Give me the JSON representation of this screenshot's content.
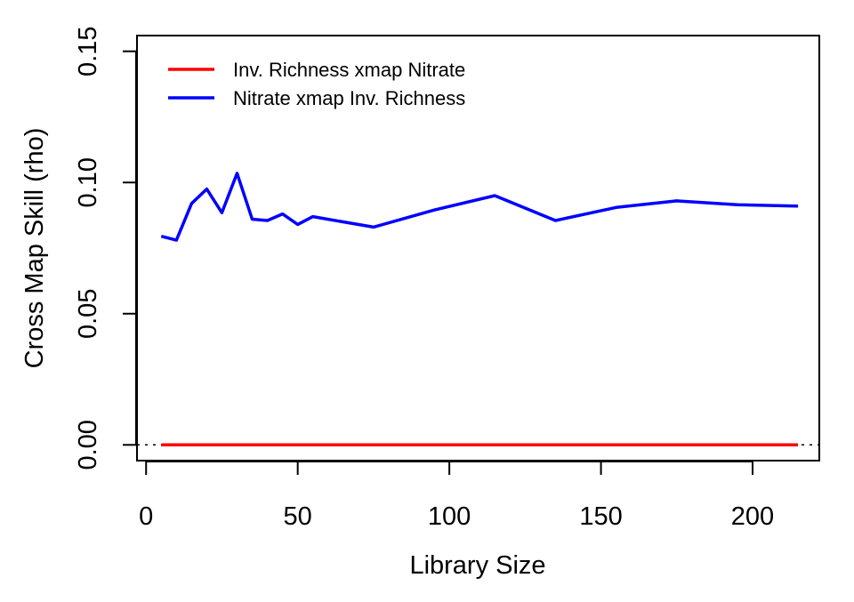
{
  "chart_data": {
    "type": "line",
    "title": "",
    "xlabel": "Library Size",
    "ylabel": "Cross Map Skill (rho)",
    "xlim": [
      -3,
      222
    ],
    "ylim": [
      -0.006,
      0.156
    ],
    "x_ticks": [
      0,
      50,
      100,
      150,
      200
    ],
    "x_tick_labels": [
      "0",
      "50",
      "100",
      "150",
      "200"
    ],
    "y_ticks": [
      0.0,
      0.05,
      0.1,
      0.15
    ],
    "y_tick_labels": [
      "0.00",
      "0.05",
      "0.10",
      "0.15"
    ],
    "grid": false,
    "legend_position": "top-left",
    "reference_line": {
      "y": 0,
      "style": "dotted",
      "color": "#000000"
    },
    "series": [
      {
        "name": "Inv. Richness xmap Nitrate",
        "color": "#ff0000",
        "x": [
          5,
          10,
          15,
          20,
          25,
          30,
          35,
          40,
          45,
          50,
          55,
          75,
          95,
          115,
          135,
          155,
          175,
          195,
          215
        ],
        "y": [
          0,
          0,
          0,
          0,
          0,
          0,
          0,
          0,
          0,
          0,
          0,
          0,
          0,
          0,
          0,
          0,
          0,
          0,
          0
        ]
      },
      {
        "name": "Nitrate xmap Inv. Richness",
        "color": "#0000ff",
        "x": [
          5,
          10,
          15,
          20,
          25,
          30,
          35,
          40,
          45,
          50,
          55,
          75,
          95,
          115,
          135,
          155,
          175,
          195,
          215
        ],
        "y": [
          0.0795,
          0.078,
          0.092,
          0.0975,
          0.0885,
          0.1035,
          0.086,
          0.0855,
          0.088,
          0.084,
          0.087,
          0.083,
          0.0895,
          0.095,
          0.0855,
          0.0905,
          0.093,
          0.0915,
          0.091
        ]
      }
    ]
  }
}
